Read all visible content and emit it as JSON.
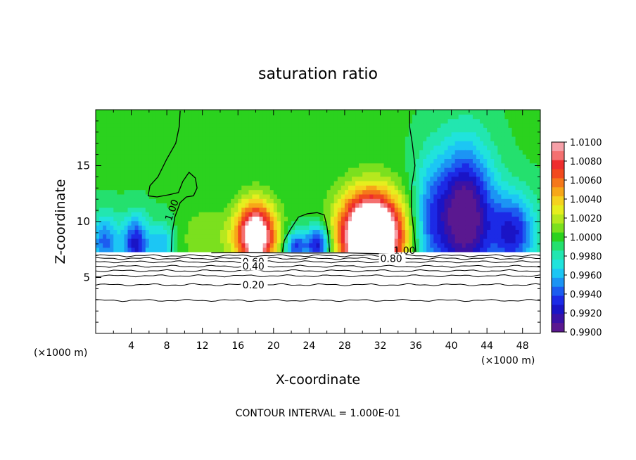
{
  "chart_data": {
    "type": "heatmap",
    "title": "saturation ratio",
    "xlabel": "X-coordinate",
    "ylabel": "Z-coordinate",
    "x_units_left": "(×1000 m)",
    "x_units_right": "(×1000 m)",
    "footer": "CONTOUR INTERVAL = 1.000E-01",
    "xlim": [
      0,
      50
    ],
    "ylim": [
      0,
      20
    ],
    "x_ticks": [
      4,
      8,
      12,
      16,
      20,
      24,
      28,
      32,
      36,
      40,
      44,
      48
    ],
    "y_ticks": [
      5,
      10,
      15
    ],
    "grid": false,
    "colorbar": {
      "placement": "right",
      "labels": [
        "1.0100",
        "1.0080",
        "1.0060",
        "1.0040",
        "1.0020",
        "1.0000",
        "0.9980",
        "0.9960",
        "0.9940",
        "0.9920",
        "0.9900"
      ],
      "levels": [
        {
          "value": 1.01,
          "color": "#f6a0a8"
        },
        {
          "value": 1.009,
          "color": "#f47070"
        },
        {
          "value": 1.008,
          "color": "#ee2d2d"
        },
        {
          "value": 1.007,
          "color": "#f24a1e"
        },
        {
          "value": 1.006,
          "color": "#f5781a"
        },
        {
          "value": 1.005,
          "color": "#f7a718"
        },
        {
          "value": 1.004,
          "color": "#f5d21e"
        },
        {
          "value": 1.003,
          "color": "#e6ee1e"
        },
        {
          "value": 1.002,
          "color": "#b6e81e"
        },
        {
          "value": 1.001,
          "color": "#7be01e"
        },
        {
          "value": 1.0,
          "color": "#2bd21e"
        },
        {
          "value": 0.999,
          "color": "#24e06e"
        },
        {
          "value": 0.998,
          "color": "#22e6b0"
        },
        {
          "value": 0.997,
          "color": "#20e3dc"
        },
        {
          "value": 0.996,
          "color": "#1cc6f4"
        },
        {
          "value": 0.995,
          "color": "#1c94f4"
        },
        {
          "value": 0.994,
          "color": "#1c5cf0"
        },
        {
          "value": 0.993,
          "color": "#1c2ae6"
        },
        {
          "value": 0.992,
          "color": "#1a14c6"
        },
        {
          "value": 0.991,
          "color": "#3a12a6"
        },
        {
          "value": 0.99,
          "color": "#5a1890"
        }
      ]
    },
    "field": {
      "base_value": 1.0001,
      "ground_level_km": 7.3,
      "lobes": [
        {
          "x": 1,
          "z": 8.2,
          "amp": -0.0055,
          "sx": 1.6,
          "sz": 2.5
        },
        {
          "x": 4.5,
          "z": 8.0,
          "amp": -0.0075,
          "sx": 1.5,
          "sz": 2.5
        },
        {
          "x": 7.5,
          "z": 8.0,
          "amp": -0.004,
          "sx": 1.3,
          "sz": 2.0
        },
        {
          "x": 12.5,
          "z": 8.6,
          "amp": 0.0018,
          "sx": 2.8,
          "sz": 2.5
        },
        {
          "x": 18.0,
          "z": 8.8,
          "amp": 0.014,
          "sx": 2.2,
          "sz": 2.8
        },
        {
          "x": 22.5,
          "z": 7.8,
          "amp": -0.006,
          "sx": 1.2,
          "sz": 1.4
        },
        {
          "x": 25.0,
          "z": 8.0,
          "amp": -0.008,
          "sx": 1.4,
          "sz": 1.6
        },
        {
          "x": 31.0,
          "z": 8.8,
          "amp": 0.02,
          "sx": 3.4,
          "sz": 3.6
        },
        {
          "x": 37.5,
          "z": 10.0,
          "amp": -0.004,
          "sx": 2.0,
          "sz": 5.5
        },
        {
          "x": 41.5,
          "z": 10.5,
          "amp": -0.011,
          "sx": 3.2,
          "sz": 6.0
        },
        {
          "x": 47.0,
          "z": 9.0,
          "amp": -0.007,
          "sx": 2.5,
          "sz": 3.5
        }
      ]
    },
    "contours": [
      {
        "label": "1.00",
        "label_x": 8.5,
        "label_z": 10.0,
        "points": [
          [
            8.5,
            7.3
          ],
          [
            8.6,
            9.0
          ],
          [
            8.9,
            10.4
          ],
          [
            9.5,
            11.7
          ],
          [
            10.2,
            12.2
          ],
          [
            11.0,
            12.3
          ],
          [
            11.4,
            13.0
          ],
          [
            11.2,
            13.9
          ],
          [
            10.5,
            14.4
          ],
          [
            9.8,
            13.6
          ],
          [
            9.3,
            12.6
          ],
          [
            8.3,
            12.4
          ],
          [
            6.9,
            12.2
          ],
          [
            5.9,
            12.3
          ],
          [
            6.1,
            13.2
          ],
          [
            7.0,
            14.0
          ],
          [
            8.0,
            15.6
          ],
          [
            9.0,
            17.0
          ],
          [
            9.4,
            18.5
          ],
          [
            9.5,
            19.9
          ]
        ]
      },
      {
        "label": "",
        "label_x": 0,
        "label_z": 0,
        "points": [
          [
            21.0,
            7.3
          ],
          [
            21.2,
            8.3
          ],
          [
            21.9,
            9.3
          ],
          [
            22.8,
            10.4
          ],
          [
            23.8,
            10.7
          ],
          [
            24.9,
            10.8
          ],
          [
            25.7,
            10.6
          ],
          [
            26.0,
            9.6
          ],
          [
            26.2,
            8.4
          ],
          [
            26.3,
            7.3
          ]
        ]
      },
      {
        "label": "",
        "label_x": 0,
        "label_z": 0,
        "points": [
          [
            36.0,
            7.3
          ],
          [
            35.8,
            9.0
          ],
          [
            35.5,
            11.0
          ],
          [
            35.5,
            13.0
          ],
          [
            35.9,
            15.0
          ],
          [
            35.6,
            17.0
          ],
          [
            35.3,
            18.5
          ],
          [
            35.3,
            19.9
          ]
        ]
      },
      {
        "label": "1.00",
        "label_x": 33.5,
        "label_z": 7.1,
        "points": [
          [
            13.0,
            7.2
          ],
          [
            16.0,
            7.22
          ],
          [
            20.0,
            7.2
          ],
          [
            24.0,
            7.18
          ],
          [
            28.0,
            7.2
          ],
          [
            32.0,
            7.12
          ],
          [
            35.0,
            7.05
          ]
        ]
      }
    ],
    "stratified_lines": [
      {
        "label": "",
        "z": 6.95,
        "label_x": 0
      },
      {
        "label": "0.80",
        "z": 6.7,
        "label_x": 32.0
      },
      {
        "label": "0.60",
        "z": 6.4,
        "label_x": 16.5
      },
      {
        "label": "0.40",
        "z": 6.0,
        "label_x": 16.5
      },
      {
        "label": "",
        "z": 5.6,
        "label_x": 0
      },
      {
        "label": "",
        "z": 5.15,
        "label_x": 0
      },
      {
        "label": "0.20",
        "z": 4.35,
        "label_x": 16.5
      },
      {
        "label": "",
        "z": 2.95,
        "label_x": 0
      }
    ]
  }
}
